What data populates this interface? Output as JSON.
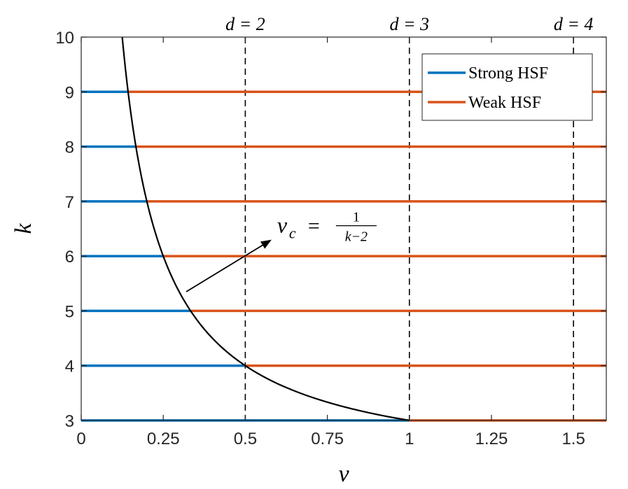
{
  "chart_data": {
    "type": "line",
    "title": "",
    "xlabel": "ν",
    "ylabel": "k",
    "xlim": [
      0,
      1.6
    ],
    "ylim": [
      3,
      10
    ],
    "x_ticks": [
      {
        "value": 0,
        "label": "0"
      },
      {
        "value": 0.25,
        "label": "0.25"
      },
      {
        "value": 0.5,
        "label": "0.5"
      },
      {
        "value": 0.75,
        "label": "0.75"
      },
      {
        "value": 1,
        "label": "1"
      },
      {
        "value": 1.25,
        "label": "1.25"
      },
      {
        "value": 1.5,
        "label": "1.5"
      }
    ],
    "y_ticks": [
      {
        "value": 3,
        "label": "3"
      },
      {
        "value": 4,
        "label": "4"
      },
      {
        "value": 5,
        "label": "5"
      },
      {
        "value": 6,
        "label": "6"
      },
      {
        "value": 7,
        "label": "7"
      },
      {
        "value": 8,
        "label": "8"
      },
      {
        "value": 9,
        "label": "9"
      },
      {
        "value": 10,
        "label": "10"
      }
    ],
    "grid": false,
    "legend_position": "top-right",
    "series": [
      {
        "name": "Strong HSF",
        "color": "#0072BD",
        "k_values": [
          3,
          4,
          5,
          6,
          7,
          8,
          9
        ]
      },
      {
        "name": "Weak HSF",
        "color": "#D95319",
        "k_values": [
          3,
          4,
          5,
          6,
          7,
          8,
          9
        ]
      }
    ],
    "critical_curve": {
      "formula": "ν_c = 1/(k−2)",
      "color": "#000000",
      "k_range": [
        3,
        10
      ]
    },
    "vertical_lines": [
      {
        "x": 0.5,
        "label": "d = 2"
      },
      {
        "x": 1,
        "label": "d = 3"
      },
      {
        "x": 1.5,
        "label": "d = 4"
      }
    ],
    "annotation": {
      "lhs": "ν",
      "sub": "c",
      "eq": "=",
      "num": "1",
      "den": "k−2",
      "arrow_from": [
        0.32,
        5.35
      ],
      "arrow_to": [
        0.58,
        6.3
      ]
    }
  }
}
